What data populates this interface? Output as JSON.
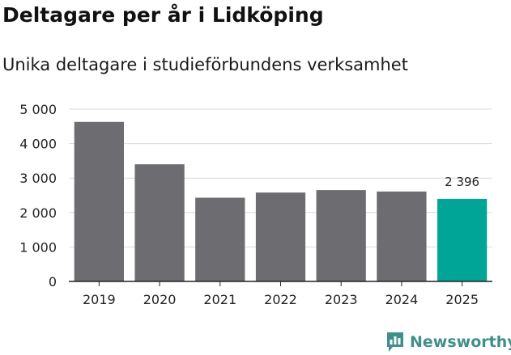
{
  "header": {
    "title": "Deltagare per år i Lidköping",
    "subtitle": "Unika deltagare i studieförbundens verksamhet"
  },
  "brand": {
    "name": "Newsworthy",
    "icon": "bar-chart-speech-bubble-icon"
  },
  "colors": {
    "bar": "#6d6c71",
    "highlight": "#00a598",
    "grid": "#d9d9d9",
    "axis": "#222222",
    "brand": "#3f8f8a"
  },
  "chart_data": {
    "type": "bar",
    "title": "Deltagare per år i Lidköping",
    "subtitle": "Unika deltagare i studieförbundens verksamhet",
    "xlabel": "",
    "ylabel": "",
    "categories": [
      "2019",
      "2020",
      "2021",
      "2022",
      "2023",
      "2024",
      "2025"
    ],
    "values": [
      4630,
      3400,
      2430,
      2580,
      2650,
      2610,
      2396
    ],
    "highlight_index": 6,
    "data_labels": [
      {
        "index": 6,
        "text": "2 396"
      }
    ],
    "ylim": [
      0,
      5000
    ],
    "yticks": [
      0,
      1000,
      2000,
      3000,
      4000,
      5000
    ],
    "ytick_labels": [
      "0",
      "1 000",
      "2 000",
      "3 000",
      "4 000",
      "5 000"
    ],
    "grid": true,
    "legend": "none"
  }
}
